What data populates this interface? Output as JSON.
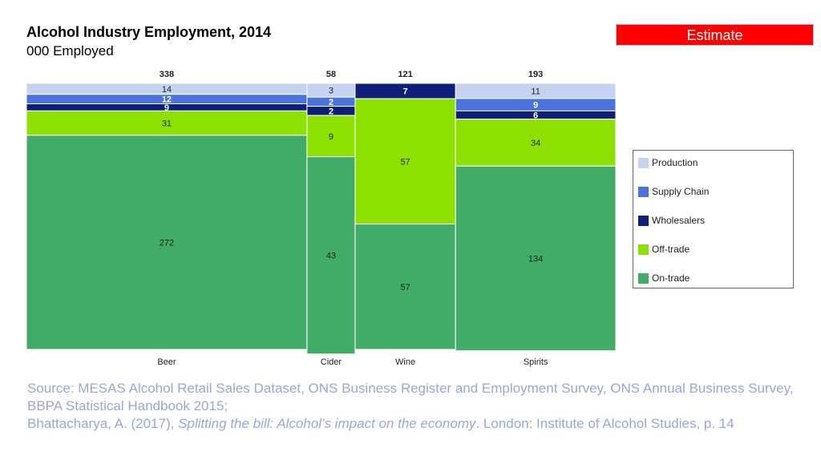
{
  "header": {
    "title": "Alcohol Industry Employment, 2014",
    "subtitle": "000 Employed",
    "badge": "Estimate"
  },
  "chart_data": {
    "type": "marimekko",
    "title": "Alcohol Industry Employment, 2014",
    "subtitle": "000 Employed",
    "categories": [
      "Beer",
      "Cider",
      "Wine",
      "Spirits"
    ],
    "totals": [
      338,
      58,
      121,
      193
    ],
    "series": [
      {
        "name": "Production",
        "color": "#c5d2f0",
        "values": [
          14,
          3,
          0,
          11
        ]
      },
      {
        "name": "Supply Chain",
        "color": "#4a74dc",
        "values": [
          12,
          2,
          0,
          9
        ]
      },
      {
        "name": "Wholesalers",
        "color": "#0e1f7a",
        "values": [
          9,
          2,
          7,
          6
        ]
      },
      {
        "name": "Off-trade",
        "color": "#8ee000",
        "values": [
          31,
          9,
          57,
          34
        ]
      },
      {
        "name": "On-trade",
        "color": "#41ab68",
        "values": [
          272,
          43,
          57,
          134
        ]
      }
    ],
    "legend": "right"
  },
  "source": {
    "line1": "Source: MESAS Alcohol Retail Sales Dataset, ONS Business Register and Employment Survey, ONS Annual Business Survey, BBPA Statistical Handbook 2015;",
    "line2_pre": "Bhattacharya, A. (2017), ",
    "line2_italic": "Splitting the bill: Alcohol’s impact on the economy",
    "line2_post": ". London: Institute of Alcohol Studies, p. 14"
  }
}
